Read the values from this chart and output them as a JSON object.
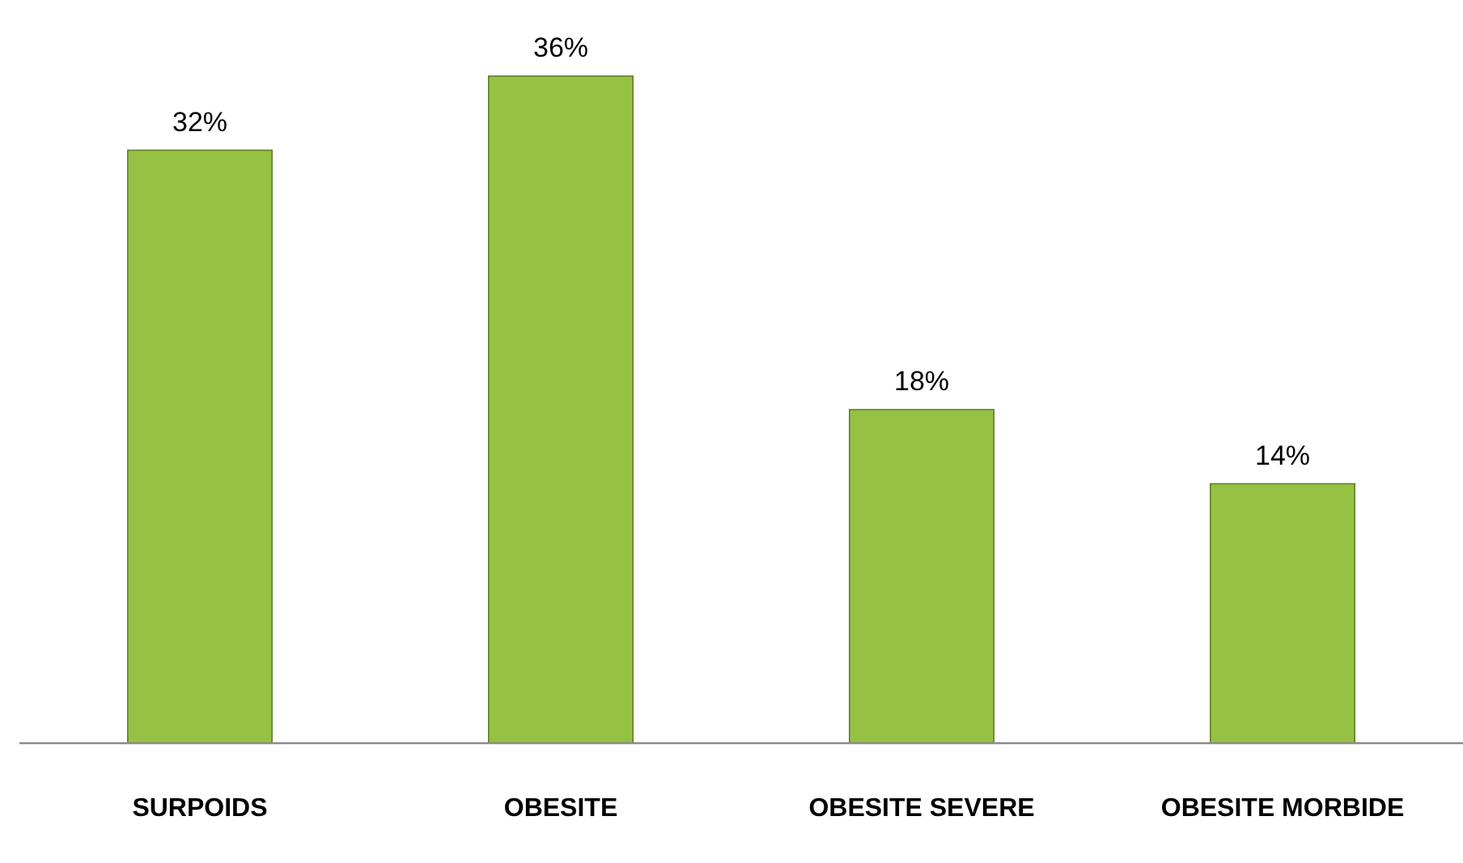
{
  "chart_data": {
    "type": "bar",
    "categories": [
      "SURPOIDS",
      "OBESITE",
      "OBESITE SEVERE",
      "OBESITE MORBIDE"
    ],
    "values": [
      32,
      36,
      18,
      14
    ],
    "value_labels": [
      "32%",
      "36%",
      "18%",
      "14%"
    ],
    "color": "#96c243"
  }
}
